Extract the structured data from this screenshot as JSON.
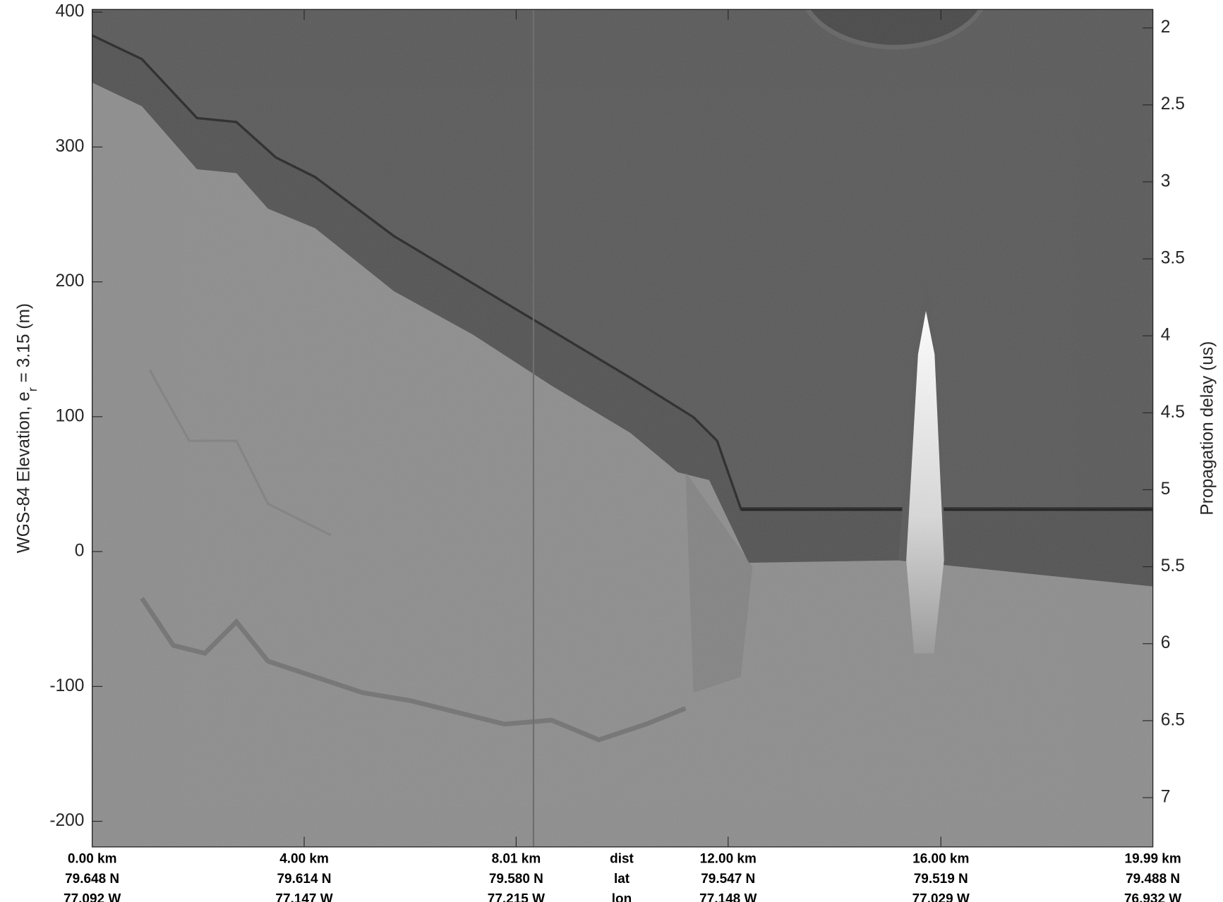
{
  "chart_data": {
    "type": "echogram",
    "ylabel_parts": [
      "WGS-84 Elevation, e",
      "r",
      " = 3.15 (m)"
    ],
    "ylim": [
      -219,
      402
    ],
    "yticks": [
      400,
      300,
      200,
      100,
      0,
      -100,
      -200
    ],
    "y2label": "Propagation delay (us)",
    "y2lim": [
      7.32,
      1.88
    ],
    "y2ticks": [
      2,
      2.5,
      3,
      3.5,
      4,
      4.5,
      5,
      5.5,
      6,
      6.5,
      7
    ],
    "row_names": [
      "dist",
      "lat",
      "lon"
    ],
    "dist_labels": [
      "0.00 km",
      "4.00 km",
      "8.01 km",
      "12.00 km",
      "16.00 km",
      "19.99 km"
    ],
    "lat_labels": [
      "79.648 N",
      "79.614 N",
      "79.580 N",
      "79.547 N",
      "79.519 N",
      "79.488 N"
    ],
    "lon_labels": [
      "77.092 W",
      "77.147 W",
      "77.215 W",
      "77.148 W",
      "77.029 W",
      "76.932 W"
    ]
  }
}
